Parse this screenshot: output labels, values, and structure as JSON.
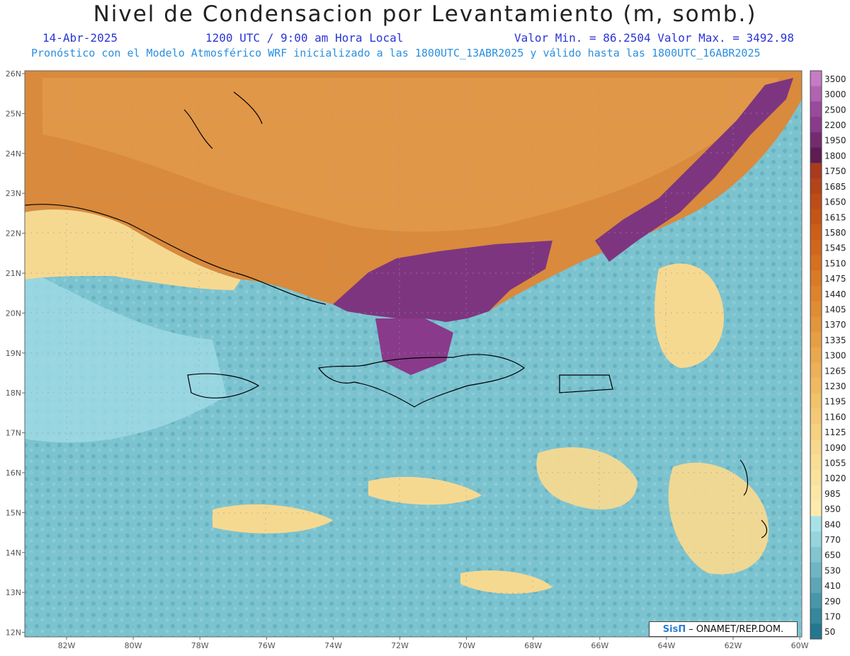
{
  "title": "Nivel de Condensacion por Levantamiento (m, somb.)",
  "date": "14-Abr-2025",
  "time": "1200 UTC / 9:00 am Hora Local",
  "min_max": "Valor Min. = 86.2504   Valor Max. = 3492.98",
  "forecast_info": "Pronóstico con el Modelo Atmosférico WRF inicializado a las 1800UTC_13ABR2025 y válido hasta las  1800UTC_16ABR2025",
  "lat_labels": [
    "26N",
    "25N",
    "24N",
    "23N",
    "22N",
    "21N",
    "20N",
    "19N",
    "18N",
    "17N",
    "16N",
    "15N",
    "14N",
    "13N",
    "12N"
  ],
  "lon_labels": [
    "82W",
    "80W",
    "78W",
    "76W",
    "74W",
    "72W",
    "70W",
    "68W",
    "66W",
    "64W",
    "62W",
    "60W"
  ],
  "colorbar": {
    "labels": [
      "3500",
      "3000",
      "2500",
      "2200",
      "1950",
      "1800",
      "1750",
      "1685",
      "1650",
      "1615",
      "1580",
      "1545",
      "1510",
      "1475",
      "1440",
      "1405",
      "1370",
      "1335",
      "1300",
      "1265",
      "1230",
      "1195",
      "1160",
      "1125",
      "1090",
      "1055",
      "1020",
      "985",
      "950",
      "840",
      "770",
      "650",
      "530",
      "410",
      "290",
      "170",
      "50"
    ],
    "colors": [
      "#c57cc2",
      "#b163b0",
      "#9a4a9c",
      "#8a3a8a",
      "#742a6e",
      "#5e1c52",
      "#a83a1e",
      "#b34318",
      "#bd4c17",
      "#c55516",
      "#cc5e18",
      "#d1671c",
      "#d57020",
      "#d97a26",
      "#dd832c",
      "#e08c33",
      "#e3953b",
      "#e69e44",
      "#e9a74e",
      "#ecb058",
      "#efb962",
      "#f1c16c",
      "#f3c977",
      "#f5d081",
      "#f7d78b",
      "#f8dd94",
      "#fae29d",
      "#fbe7a5",
      "#fcebad",
      "#a8e2e9",
      "#95d4dd",
      "#82c5d1",
      "#6fb6c4",
      "#5ca6b7",
      "#4896aa",
      "#35879c",
      "#237890"
    ]
  },
  "colors": {
    "land_orange": "#d88a3a",
    "ocean_teal": "#72bccb",
    "purple": "#7e3580",
    "yellow": "#f7dc8f",
    "title_blue": "#2a35d6",
    "info_blue": "#2a8fe0"
  },
  "credit": {
    "logo": "SisΠ",
    "text": "– ONAMET/REP.DOM."
  }
}
